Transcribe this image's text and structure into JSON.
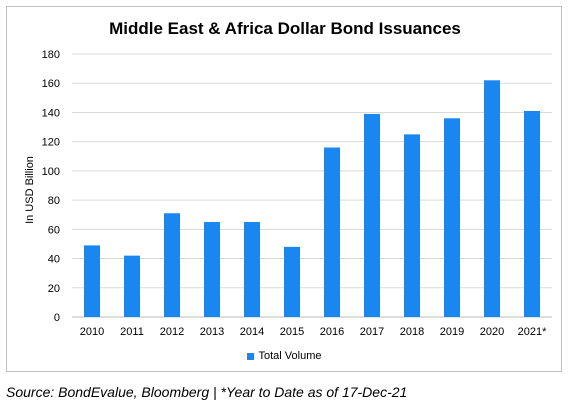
{
  "chart_data": {
    "type": "bar",
    "title": "Middle East & Africa Dollar Bond Issuances",
    "ylabel": "In USD Billion",
    "xlabel": "",
    "categories": [
      "2010",
      "2011",
      "2012",
      "2013",
      "2014",
      "2015",
      "2016",
      "2017",
      "2018",
      "2019",
      "2020",
      "2021*"
    ],
    "series": [
      {
        "name": "Total Volume",
        "values": [
          49,
          42,
          71,
          65,
          65,
          48,
          116,
          139,
          125,
          136,
          162,
          141
        ]
      }
    ],
    "ylim": [
      0,
      180
    ],
    "yticks": [
      0,
      20,
      40,
      60,
      80,
      100,
      120,
      140,
      160,
      180
    ],
    "grid": true,
    "legend": "bottom-center",
    "bar_color": "#1a86f0",
    "grid_color": "#d9d9d9"
  },
  "footer": {
    "source": "Source: BondEvalue, Bloomberg | *Year to Date as of 17-Dec-21"
  }
}
